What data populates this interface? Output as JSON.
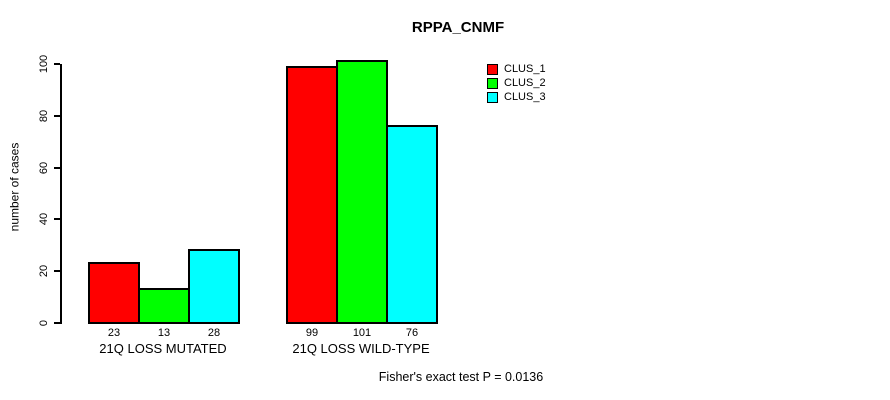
{
  "page": {
    "background": "#FFFFFF",
    "text_color": "#000000"
  },
  "chart_data": {
    "type": "bar",
    "title": "RPPA_CNMF",
    "xlabel": "",
    "ylabel": "number of cases",
    "categories": [
      "21Q LOSS MUTATED",
      "21Q LOSS WILD-TYPE"
    ],
    "series": [
      {
        "name": "CLUS_1",
        "color": "#FF0000",
        "values": [
          23,
          99
        ]
      },
      {
        "name": "CLUS_2",
        "color": "#00FF00",
        "values": [
          13,
          101
        ]
      },
      {
        "name": "CLUS_3",
        "color": "#00FFFF",
        "values": [
          28,
          76
        ]
      }
    ],
    "ylim": [
      0,
      100
    ],
    "yticks": [
      0,
      20,
      40,
      60,
      80,
      100
    ],
    "grid": false,
    "bar_border_color": "#000000",
    "value_labels_shown": true,
    "legend": {
      "position": "top-right-inside",
      "entries": [
        "CLUS_1",
        "CLUS_2",
        "CLUS_3"
      ]
    },
    "annotation": "Fisher's exact test P = 0.0136"
  }
}
